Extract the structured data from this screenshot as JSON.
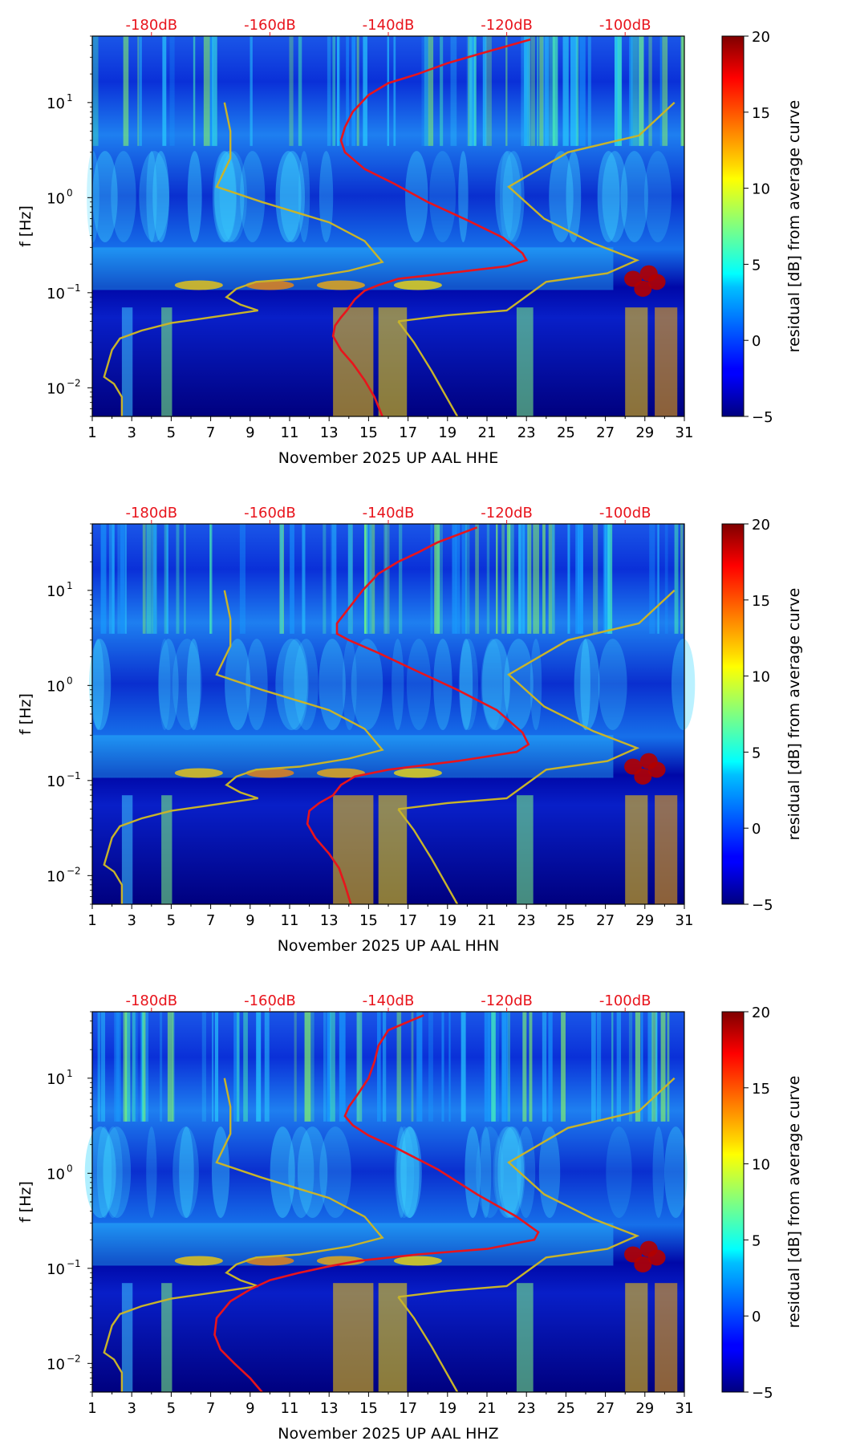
{
  "chart_data": [
    {
      "type": "heatmap",
      "xlabel": "November 2025 UP AAL  HHE",
      "ylabel": "f [Hz]",
      "x_ticks": [
        "1",
        "3",
        "5",
        "7",
        "9",
        "11",
        "13",
        "15",
        "17",
        "19",
        "21",
        "23",
        "25",
        "27",
        "29",
        "31"
      ],
      "xlim": [
        1,
        31
      ],
      "y_scale": "log",
      "ylim": [
        0.005,
        50
      ],
      "y_ticks": [
        {
          "label": "10",
          "exp": "1",
          "value": 10
        },
        {
          "label": "10",
          "exp": "0",
          "value": 1
        },
        {
          "label": "10",
          "exp": "−1",
          "value": 0.1
        },
        {
          "label": "10",
          "exp": "−2",
          "value": 0.01
        }
      ],
      "top_ticks": [
        "-180dB",
        "-160dB",
        "-140dB",
        "-120dB",
        "-100dB"
      ],
      "colorbar": {
        "label": "residual [dB] from average curve",
        "ticks": [
          "20",
          "15",
          "10",
          "5",
          "0",
          "−5"
        ],
        "range": [
          -5,
          20
        ]
      },
      "red_curve": [
        [
          23.2,
          46
        ],
        [
          20.5,
          32
        ],
        [
          19,
          26
        ],
        [
          17.5,
          20
        ],
        [
          16,
          16
        ],
        [
          15,
          12
        ],
        [
          14.2,
          8
        ],
        [
          13.8,
          5.5
        ],
        [
          13.6,
          4
        ],
        [
          13.8,
          3
        ],
        [
          14.8,
          2
        ],
        [
          16.3,
          1.4
        ],
        [
          18,
          0.9
        ],
        [
          20,
          0.58
        ],
        [
          21.8,
          0.38
        ],
        [
          22.8,
          0.26
        ],
        [
          23,
          0.22
        ],
        [
          22,
          0.19
        ],
        [
          19,
          0.16
        ],
        [
          16.5,
          0.14
        ],
        [
          15.5,
          0.12
        ],
        [
          14.8,
          0.105
        ],
        [
          14.3,
          0.085
        ],
        [
          13.9,
          0.065
        ],
        [
          13.6,
          0.055
        ],
        [
          13.3,
          0.045
        ],
        [
          13.2,
          0.035
        ],
        [
          13.6,
          0.025
        ],
        [
          14.2,
          0.018
        ],
        [
          14.8,
          0.012
        ],
        [
          15.3,
          0.008
        ],
        [
          15.7,
          0.005
        ]
      ],
      "yellow_curve_left": [
        [
          7.7,
          10
        ],
        [
          8.0,
          5
        ],
        [
          8.0,
          2.6
        ],
        [
          7.3,
          1.3
        ],
        [
          9.6,
          0.9
        ],
        [
          13.0,
          0.55
        ],
        [
          14.8,
          0.35
        ],
        [
          15.7,
          0.21
        ],
        [
          14,
          0.17
        ],
        [
          11.5,
          0.14
        ],
        [
          9.3,
          0.13
        ],
        [
          8.3,
          0.11
        ],
        [
          7.8,
          0.09
        ],
        [
          8.5,
          0.075
        ],
        [
          9.4,
          0.065
        ],
        [
          7,
          0.055
        ],
        [
          5,
          0.048
        ],
        [
          3.5,
          0.04
        ],
        [
          2.4,
          0.033
        ],
        [
          2,
          0.025
        ],
        [
          1.8,
          0.018
        ],
        [
          1.6,
          0.013
        ],
        [
          2.1,
          0.011
        ],
        [
          2.5,
          0.008
        ],
        [
          2.5,
          0.005
        ]
      ],
      "yellow_curve_middle": [
        [
          16.5,
          0.05
        ],
        [
          17.3,
          0.03
        ],
        [
          18.2,
          0.015
        ],
        [
          19.5,
          0.005
        ]
      ],
      "yellow_curve_right": [
        [
          30.5,
          10
        ],
        [
          28.7,
          4.5
        ],
        [
          25.1,
          3
        ],
        [
          22.1,
          1.3
        ],
        [
          23.9,
          0.6
        ],
        [
          26.4,
          0.33
        ],
        [
          28.6,
          0.22
        ],
        [
          27.1,
          0.16
        ],
        [
          24,
          0.13
        ],
        [
          22,
          0.065
        ],
        [
          19,
          0.058
        ],
        [
          16.5,
          0.05
        ]
      ]
    },
    {
      "type": "heatmap",
      "xlabel": "November 2025 UP AAL  HHN",
      "ylabel": "f [Hz]",
      "x_ticks": [
        "1",
        "3",
        "5",
        "7",
        "9",
        "11",
        "13",
        "15",
        "17",
        "19",
        "21",
        "23",
        "25",
        "27",
        "29",
        "31"
      ],
      "xlim": [
        1,
        31
      ],
      "y_scale": "log",
      "ylim": [
        0.005,
        50
      ],
      "y_ticks": [
        {
          "label": "10",
          "exp": "1",
          "value": 10
        },
        {
          "label": "10",
          "exp": "0",
          "value": 1
        },
        {
          "label": "10",
          "exp": "−1",
          "value": 0.1
        },
        {
          "label": "10",
          "exp": "−2",
          "value": 0.01
        }
      ],
      "top_ticks": [
        "-180dB",
        "-160dB",
        "-140dB",
        "-120dB",
        "-100dB"
      ],
      "colorbar": {
        "label": "residual [dB] from average curve",
        "ticks": [
          "20",
          "15",
          "10",
          "5",
          "0",
          "−5"
        ],
        "range": [
          -5,
          20
        ]
      },
      "red_curve": [
        [
          20.5,
          46
        ],
        [
          18.5,
          32
        ],
        [
          17.5,
          25
        ],
        [
          16.5,
          20
        ],
        [
          15.5,
          15
        ],
        [
          14.7,
          10
        ],
        [
          14,
          6.5
        ],
        [
          13.4,
          4.5
        ],
        [
          13.4,
          3.5
        ],
        [
          14,
          3
        ],
        [
          15.5,
          2.2
        ],
        [
          17.5,
          1.4
        ],
        [
          19.5,
          0.9
        ],
        [
          21.5,
          0.55
        ],
        [
          22.8,
          0.32
        ],
        [
          23.1,
          0.24
        ],
        [
          22.5,
          0.2
        ],
        [
          19.5,
          0.16
        ],
        [
          16,
          0.13
        ],
        [
          14.3,
          0.11
        ],
        [
          13.6,
          0.09
        ],
        [
          13.2,
          0.07
        ],
        [
          12.5,
          0.058
        ],
        [
          12,
          0.048
        ],
        [
          11.9,
          0.035
        ],
        [
          12.3,
          0.025
        ],
        [
          13,
          0.017
        ],
        [
          13.5,
          0.012
        ],
        [
          13.8,
          0.008
        ],
        [
          14.1,
          0.005
        ]
      ],
      "yellow_curve_left": [
        [
          7.7,
          10
        ],
        [
          8.0,
          5
        ],
        [
          8.0,
          2.6
        ],
        [
          7.3,
          1.3
        ],
        [
          9.6,
          0.9
        ],
        [
          13.0,
          0.55
        ],
        [
          14.8,
          0.35
        ],
        [
          15.7,
          0.21
        ],
        [
          14,
          0.17
        ],
        [
          11.5,
          0.14
        ],
        [
          9.3,
          0.13
        ],
        [
          8.3,
          0.11
        ],
        [
          7.8,
          0.09
        ],
        [
          8.5,
          0.075
        ],
        [
          9.4,
          0.065
        ],
        [
          7,
          0.055
        ],
        [
          5,
          0.048
        ],
        [
          3.5,
          0.04
        ],
        [
          2.4,
          0.033
        ],
        [
          2,
          0.025
        ],
        [
          1.8,
          0.018
        ],
        [
          1.6,
          0.013
        ],
        [
          2.1,
          0.011
        ],
        [
          2.5,
          0.008
        ],
        [
          2.5,
          0.005
        ]
      ],
      "yellow_curve_middle": [
        [
          16.5,
          0.05
        ],
        [
          17.3,
          0.03
        ],
        [
          18.2,
          0.015
        ],
        [
          19.5,
          0.005
        ]
      ],
      "yellow_curve_right": [
        [
          30.5,
          10
        ],
        [
          28.7,
          4.5
        ],
        [
          25.1,
          3
        ],
        [
          22.1,
          1.3
        ],
        [
          23.9,
          0.6
        ],
        [
          26.4,
          0.33
        ],
        [
          28.6,
          0.22
        ],
        [
          27.1,
          0.16
        ],
        [
          24,
          0.13
        ],
        [
          22,
          0.065
        ],
        [
          19,
          0.058
        ],
        [
          16.5,
          0.05
        ]
      ]
    },
    {
      "type": "heatmap",
      "xlabel": "November 2025 UP AAL  HHZ",
      "ylabel": "f [Hz]",
      "x_ticks": [
        "1",
        "3",
        "5",
        "7",
        "9",
        "11",
        "13",
        "15",
        "17",
        "19",
        "21",
        "23",
        "25",
        "27",
        "29",
        "31"
      ],
      "xlim": [
        1,
        31
      ],
      "y_scale": "log",
      "ylim": [
        0.005,
        50
      ],
      "y_ticks": [
        {
          "label": "10",
          "exp": "1",
          "value": 10
        },
        {
          "label": "10",
          "exp": "0",
          "value": 1
        },
        {
          "label": "10",
          "exp": "−1",
          "value": 0.1
        },
        {
          "label": "10",
          "exp": "−2",
          "value": 0.01
        }
      ],
      "top_ticks": [
        "-180dB",
        "-160dB",
        "-140dB",
        "-120dB",
        "-100dB"
      ],
      "colorbar": {
        "label": "residual [dB] from average curve",
        "ticks": [
          "20",
          "15",
          "10",
          "5",
          "0",
          "−5"
        ],
        "range": [
          -5,
          20
        ]
      },
      "red_curve": [
        [
          17.8,
          46
        ],
        [
          16,
          32
        ],
        [
          15.5,
          22
        ],
        [
          15.3,
          15
        ],
        [
          15,
          10
        ],
        [
          14.5,
          7
        ],
        [
          14,
          5
        ],
        [
          13.8,
          4
        ],
        [
          14.2,
          3.2
        ],
        [
          15,
          2.5
        ],
        [
          16.5,
          1.8
        ],
        [
          18.5,
          1.1
        ],
        [
          20.5,
          0.6
        ],
        [
          22.5,
          0.35
        ],
        [
          23.6,
          0.24
        ],
        [
          23.4,
          0.2
        ],
        [
          21,
          0.16
        ],
        [
          17.5,
          0.14
        ],
        [
          14.5,
          0.12
        ],
        [
          13,
          0.105
        ],
        [
          11.5,
          0.09
        ],
        [
          10,
          0.075
        ],
        [
          9,
          0.06
        ],
        [
          8,
          0.045
        ],
        [
          7.3,
          0.03
        ],
        [
          7.2,
          0.02
        ],
        [
          7.5,
          0.014
        ],
        [
          8.2,
          0.01
        ],
        [
          9,
          0.007
        ],
        [
          9.6,
          0.005
        ]
      ],
      "yellow_curve_left": [
        [
          7.7,
          10
        ],
        [
          8.0,
          5
        ],
        [
          8.0,
          2.6
        ],
        [
          7.3,
          1.3
        ],
        [
          9.6,
          0.9
        ],
        [
          13.0,
          0.55
        ],
        [
          14.8,
          0.35
        ],
        [
          15.7,
          0.21
        ],
        [
          14,
          0.17
        ],
        [
          11.5,
          0.14
        ],
        [
          9.3,
          0.13
        ],
        [
          8.3,
          0.11
        ],
        [
          7.8,
          0.09
        ],
        [
          8.5,
          0.075
        ],
        [
          9.4,
          0.065
        ],
        [
          7,
          0.055
        ],
        [
          5,
          0.048
        ],
        [
          3.5,
          0.04
        ],
        [
          2.4,
          0.033
        ],
        [
          2,
          0.025
        ],
        [
          1.8,
          0.018
        ],
        [
          1.6,
          0.013
        ],
        [
          2.1,
          0.011
        ],
        [
          2.5,
          0.008
        ],
        [
          2.5,
          0.005
        ]
      ],
      "yellow_curve_middle": [
        [
          16.5,
          0.05
        ],
        [
          17.3,
          0.03
        ],
        [
          18.2,
          0.015
        ],
        [
          19.5,
          0.005
        ]
      ],
      "yellow_curve_right": [
        [
          30.5,
          10
        ],
        [
          28.7,
          4.5
        ],
        [
          25.1,
          3
        ],
        [
          22.1,
          1.3
        ],
        [
          23.9,
          0.6
        ],
        [
          26.4,
          0.33
        ],
        [
          28.6,
          0.22
        ],
        [
          27.1,
          0.16
        ],
        [
          24,
          0.13
        ],
        [
          22,
          0.065
        ],
        [
          19,
          0.058
        ],
        [
          16.5,
          0.05
        ]
      ]
    }
  ],
  "colors": {
    "red_curve": "#e8141c",
    "yellow_curve": "#c8b42a",
    "top_tick_text": "#e8141c",
    "axis": "#000000"
  }
}
